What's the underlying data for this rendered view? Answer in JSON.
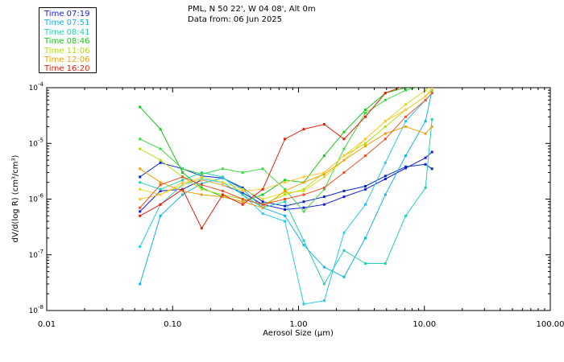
{
  "header": {
    "station": "PML, N 50 22', W 04 08', Alt 0m",
    "date": "Data from: 06 Jun 2025"
  },
  "legend": [
    {
      "label": "Time 07:19",
      "color": "#1a1adc"
    },
    {
      "label": "Time 07:51",
      "color": "#16b4e6"
    },
    {
      "label": "Time 08:41",
      "color": "#22d2b4"
    },
    {
      "label": "Time 08:46",
      "color": "#1ec81e"
    },
    {
      "label": "Time 11:06",
      "color": "#b4dc14"
    },
    {
      "label": "Time 12:06",
      "color": "#f0a00a"
    },
    {
      "label": "Time 16:20",
      "color": "#e61e0a"
    }
  ],
  "chart_data": {
    "type": "line",
    "xscale": "log",
    "yscale": "log",
    "xlim": [
      0.01,
      100
    ],
    "ylim": [
      1e-08,
      0.0001
    ],
    "xlabel": "Aerosol Size (µm)",
    "ylabel": "dV/d(log R) (cm³/cm³)",
    "x_tick_labels": [
      "0.01",
      "0.10",
      "1.00",
      "10.00",
      "100.00"
    ],
    "y_tick_labels": [
      {
        "value": 0.0001,
        "base": "10",
        "exp": "-4"
      },
      {
        "value": 1e-05,
        "base": "10",
        "exp": "-5"
      },
      {
        "value": 1e-06,
        "base": "10",
        "exp": "-6"
      },
      {
        "value": 1e-07,
        "base": "10",
        "exp": "-7"
      },
      {
        "value": 1e-08,
        "base": "10",
        "exp": "-8"
      }
    ],
    "x": [
      0.055,
      0.08,
      0.12,
      0.17,
      0.25,
      0.36,
      0.52,
      0.78,
      1.1,
      1.6,
      2.3,
      3.4,
      4.9,
      7.1,
      10.2,
      11.5
    ],
    "series": [
      {
        "name": "Time 07:19",
        "color": "#1a1adc",
        "values": [
          6e-07,
          1.4e-06,
          1.5e-06,
          2.2e-06,
          1.8e-06,
          1.3e-06,
          8e-07,
          6.5e-07,
          7e-07,
          8e-07,
          1.1e-06,
          1.5e-06,
          2.3e-06,
          3.6e-06,
          5.5e-06,
          7e-06
        ]
      },
      {
        "name": "Time 07:19",
        "color": "#0a28c8",
        "values": [
          2.5e-06,
          4.5e-06,
          3.5e-06,
          2.6e-06,
          2.4e-06,
          1.6e-06,
          9e-07,
          7.5e-07,
          9e-07,
          1.1e-06,
          1.4e-06,
          1.7e-06,
          2.6e-06,
          3.8e-06,
          4.2e-06,
          3.5e-06
        ]
      },
      {
        "name": "Time 07:51",
        "color": "#16b4e6",
        "values": [
          3e-08,
          5e-07,
          1.2e-06,
          1.9e-06,
          2.4e-06,
          1.5e-06,
          7e-07,
          5e-07,
          1.5e-07,
          6e-08,
          4e-08,
          2e-07,
          1.2e-06,
          6e-06,
          2.5e-05,
          9e-05
        ]
      },
      {
        "name": "Time 07:51",
        "color": "#28c8f0",
        "values": [
          1.4e-07,
          8e-07,
          1.8e-06,
          2.3e-06,
          2e-06,
          1.2e-06,
          5.5e-07,
          4e-07,
          1.3e-08,
          1.5e-08,
          2.5e-07,
          8e-07,
          4.5e-06,
          2.5e-05,
          6e-05,
          8e-05
        ]
      },
      {
        "name": "Time 08:41",
        "color": "#22d2b4",
        "values": [
          2e-06,
          1.5e-06,
          2.2e-06,
          3e-06,
          2.5e-06,
          1.2e-06,
          7e-07,
          9e-07,
          1.8e-07,
          3e-08,
          1.2e-07,
          7e-08,
          7e-08,
          5e-07,
          1.6e-06,
          2.7e-05
        ]
      },
      {
        "name": "Time 08:46",
        "color": "#1ec81e",
        "values": [
          4.5e-05,
          1.8e-05,
          3e-06,
          1.6e-06,
          1.1e-06,
          9e-07,
          1.2e-06,
          2.2e-06,
          2e-06,
          6e-06,
          1.6e-05,
          4e-05,
          8e-05,
          0.0001,
          0.00011,
          0.00012
        ]
      },
      {
        "name": "Time 08:46",
        "color": "#3cdc3c",
        "values": [
          1.2e-05,
          8e-06,
          3.5e-06,
          2.8e-06,
          3.5e-06,
          3e-06,
          3.5e-06,
          1.5e-06,
          6e-07,
          1.5e-06,
          8e-06,
          3.5e-05,
          6e-05,
          9e-05,
          0.00011,
          0.00012
        ]
      },
      {
        "name": "Time 11:06",
        "color": "#b4dc14",
        "values": [
          8e-06,
          5e-06,
          2.5e-06,
          1.5e-06,
          1.2e-06,
          1e-06,
          8e-07,
          1.2e-06,
          1.5e-06,
          3e-06,
          6e-06,
          1e-05,
          2e-05,
          4e-05,
          7e-05,
          9e-05
        ]
      },
      {
        "name": "Time 11:06",
        "color": "#dcdc28",
        "values": [
          1.5e-06,
          1.2e-06,
          1.8e-06,
          2.5e-06,
          2e-06,
          1.5e-06,
          1e-06,
          1.3e-06,
          1.4e-06,
          2.5e-06,
          5e-06,
          1.2e-05,
          2.5e-05,
          5e-05,
          9e-05,
          0.00011
        ]
      },
      {
        "name": "Time 12:06",
        "color": "#f0a00a",
        "values": [
          3.5e-06,
          2e-06,
          1.4e-06,
          1.2e-06,
          1.1e-06,
          9e-07,
          7e-07,
          1.4e-06,
          2e-06,
          2.8e-06,
          5e-06,
          9e-06,
          1.5e-05,
          2e-05,
          1.5e-05,
          2e-05
        ]
      },
      {
        "name": "Time 12:06",
        "color": "#ffc83c",
        "values": [
          1e-06,
          1.2e-06,
          2e-06,
          2.2e-06,
          1.8e-06,
          1.4e-06,
          1.5e-06,
          2e-06,
          2.5e-06,
          3e-06,
          6e-06,
          1.2e-05,
          2.5e-05,
          4e-05,
          7e-05,
          0.0001
        ]
      },
      {
        "name": "Time 16:20",
        "color": "#e61e0a",
        "values": [
          5e-07,
          8e-07,
          1.5e-06,
          3e-07,
          1.2e-06,
          8e-07,
          1.5e-06,
          1.2e-05,
          1.8e-05,
          2.2e-05,
          1.2e-05,
          3e-05,
          8e-05,
          0.00011,
          0.00012,
          0.00012
        ]
      },
      {
        "name": "Time 16:20",
        "color": "#f05028",
        "values": [
          7e-07,
          1.8e-06,
          2.5e-06,
          1.8e-06,
          1.4e-06,
          1e-06,
          8e-07,
          1e-06,
          1.2e-06,
          1.6e-06,
          3e-06,
          6e-06,
          1.2e-05,
          3e-05,
          6e-05,
          8e-05
        ]
      }
    ]
  }
}
